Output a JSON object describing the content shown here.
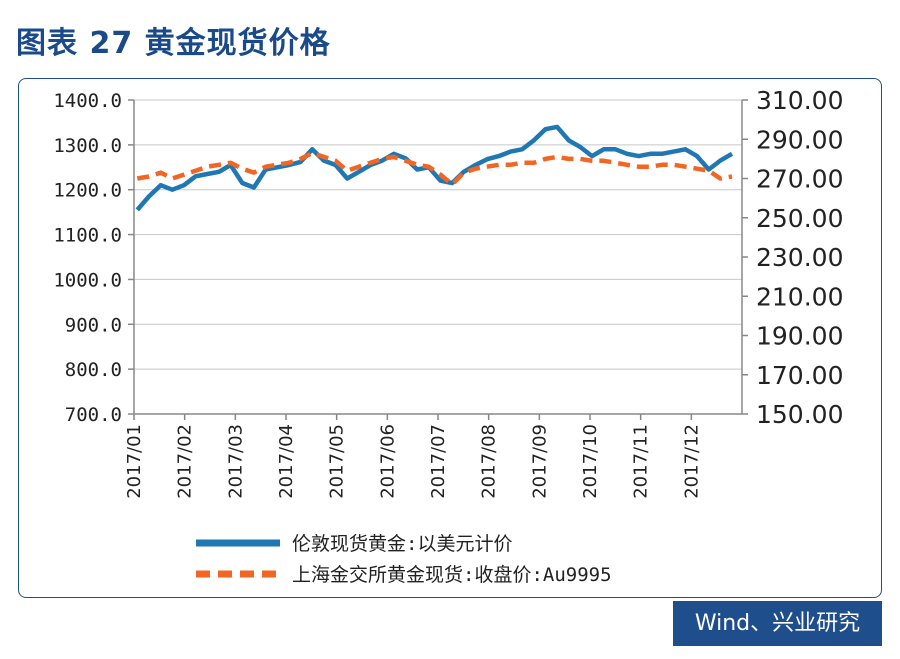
{
  "title": "图表 27  黄金现货价格",
  "source": "Wind、兴业研究",
  "colors": {
    "series1": "#1f77b4",
    "series2": "#f26522",
    "frame": "#1f4e8c",
    "title": "#1a4a8a",
    "grid": "#c8c8c8"
  },
  "chart_data": {
    "type": "line",
    "grid": true,
    "legend_position": "bottom",
    "x_ticks": [
      "2017/01",
      "2017/02",
      "2017/03",
      "2017/04",
      "2017/05",
      "2017/06",
      "2017/07",
      "2017/08",
      "2017/09",
      "2017/10",
      "2017/11",
      "2017/12"
    ],
    "y_left": {
      "ticks": [
        "1400.0",
        "1300.0",
        "1200.0",
        "1100.0",
        "1000.0",
        "900.0",
        "800.0",
        "700.0"
      ],
      "range": [
        700,
        1400
      ]
    },
    "y_right": {
      "ticks": [
        "310.00",
        "290.00",
        "270.00",
        "250.00",
        "230.00",
        "210.00",
        "190.00",
        "170.00",
        "150.00"
      ],
      "range": [
        150,
        310
      ]
    },
    "series": [
      {
        "name": "伦敦现货黄金:以美元计价",
        "axis": "left",
        "style": "solid",
        "x": [
          "2017-01-03",
          "2017-01-10",
          "2017-01-17",
          "2017-01-24",
          "2017-01-31",
          "2017-02-07",
          "2017-02-14",
          "2017-02-21",
          "2017-02-28",
          "2017-03-07",
          "2017-03-14",
          "2017-03-21",
          "2017-03-28",
          "2017-04-04",
          "2017-04-11",
          "2017-04-18",
          "2017-04-25",
          "2017-05-02",
          "2017-05-09",
          "2017-05-16",
          "2017-05-23",
          "2017-05-30",
          "2017-06-06",
          "2017-06-13",
          "2017-06-20",
          "2017-06-27",
          "2017-07-04",
          "2017-07-11",
          "2017-07-18",
          "2017-07-25",
          "2017-08-01",
          "2017-08-08",
          "2017-08-15",
          "2017-08-22",
          "2017-08-29",
          "2017-09-05",
          "2017-09-12",
          "2017-09-19",
          "2017-09-26",
          "2017-10-03",
          "2017-10-10",
          "2017-10-17",
          "2017-10-24",
          "2017-10-31",
          "2017-11-07",
          "2017-11-14",
          "2017-11-21",
          "2017-11-28",
          "2017-12-05",
          "2017-12-12",
          "2017-12-19",
          "2017-12-26"
        ],
        "y": [
          1155,
          1185,
          1210,
          1200,
          1210,
          1230,
          1235,
          1240,
          1255,
          1215,
          1205,
          1245,
          1250,
          1255,
          1262,
          1290,
          1265,
          1255,
          1225,
          1240,
          1255,
          1265,
          1280,
          1270,
          1245,
          1250,
          1220,
          1215,
          1240,
          1255,
          1268,
          1275,
          1285,
          1290,
          1310,
          1335,
          1340,
          1310,
          1295,
          1275,
          1290,
          1290,
          1280,
          1275,
          1280,
          1280,
          1285,
          1290,
          1275,
          1245,
          1265,
          1280
        ]
      },
      {
        "name": "上海金交所黄金现货:收盘价:Au9995",
        "axis": "right",
        "style": "dashed",
        "x": [
          "2017-01-03",
          "2017-01-10",
          "2017-01-17",
          "2017-01-24",
          "2017-01-31",
          "2017-02-07",
          "2017-02-14",
          "2017-02-21",
          "2017-02-28",
          "2017-03-07",
          "2017-03-14",
          "2017-03-21",
          "2017-03-28",
          "2017-04-04",
          "2017-04-11",
          "2017-04-18",
          "2017-04-25",
          "2017-05-02",
          "2017-05-09",
          "2017-05-16",
          "2017-05-23",
          "2017-05-30",
          "2017-06-06",
          "2017-06-13",
          "2017-06-20",
          "2017-06-27",
          "2017-07-04",
          "2017-07-11",
          "2017-07-18",
          "2017-07-25",
          "2017-08-01",
          "2017-08-08",
          "2017-08-15",
          "2017-08-22",
          "2017-08-29",
          "2017-09-05",
          "2017-09-12",
          "2017-09-19",
          "2017-09-26",
          "2017-10-03",
          "2017-10-10",
          "2017-10-17",
          "2017-10-24",
          "2017-10-31",
          "2017-11-07",
          "2017-11-14",
          "2017-11-21",
          "2017-11-28",
          "2017-12-05",
          "2017-12-12",
          "2017-12-19",
          "2017-12-26"
        ],
        "y": [
          270,
          271,
          273,
          270,
          272,
          274,
          276,
          277,
          278,
          275,
          273,
          276,
          277,
          278,
          280,
          283,
          281,
          279,
          274,
          276,
          278,
          280,
          281,
          279,
          277,
          276,
          272,
          267,
          273,
          275,
          276,
          277,
          277,
          278,
          278,
          280,
          281,
          280,
          280,
          279,
          279,
          278,
          277,
          276,
          276,
          277,
          277,
          276,
          275,
          274,
          270,
          271
        ]
      }
    ]
  }
}
